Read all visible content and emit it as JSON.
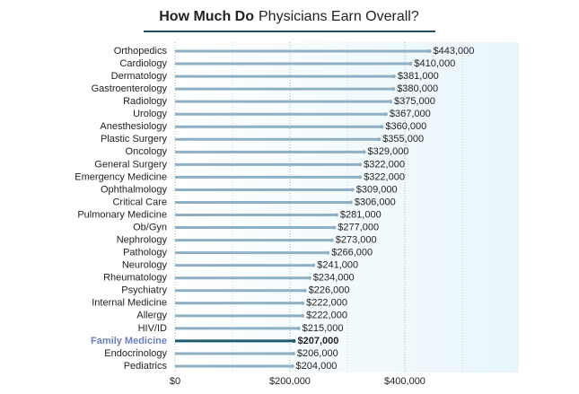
{
  "chart_data": {
    "type": "bar",
    "orientation": "horizontal",
    "title": {
      "bold": "How Much Do",
      "regular": "Physicians Earn Overall?"
    },
    "categories": [
      "Orthopedics",
      "Cardiology",
      "Dermatology",
      "Gastroenterology",
      "Radiology",
      "Urology",
      "Anesthesiology",
      "Plastic Surgery",
      "Oncology",
      "General Surgery",
      "Emergency Medicine",
      "Ophthalmology",
      "Critical Care",
      "Pulmonary Medicine",
      "Ob/Gyn",
      "Nephrology",
      "Pathology",
      "Neurology",
      "Rheumatology",
      "Psychiatry",
      "Internal Medicine",
      "Allergy",
      "HIV/ID",
      "Family Medicine",
      "Endocrinology",
      "Pediatrics"
    ],
    "values": [
      443000,
      410000,
      381000,
      380000,
      375000,
      367000,
      360000,
      355000,
      329000,
      322000,
      322000,
      309000,
      306000,
      281000,
      277000,
      273000,
      266000,
      241000,
      234000,
      226000,
      222000,
      222000,
      215000,
      207000,
      206000,
      204000
    ],
    "value_labels": [
      "$443,000",
      "$410,000",
      "$381,000",
      "$380,000",
      "$375,000",
      "$367,000",
      "$360,000",
      "$355,000",
      "$329,000",
      "$322,000",
      "$322,000",
      "$309,000",
      "$306,000",
      "$281,000",
      "$277,000",
      "$273,000",
      "$266,000",
      "$241,000",
      "$234,000",
      "$226,000",
      "$222,000",
      "$222,000",
      "$215,000",
      "$207,000",
      "$206,000",
      "$204,000"
    ],
    "color": "#8fb0c4",
    "highlight_index": 23,
    "highlight_color": "#1e5a6e",
    "highlight_label_color": "#6b7fc0",
    "xlim": [
      0,
      600000
    ],
    "xticks": [
      {
        "value": 0,
        "label": "$0"
      },
      {
        "value": 200000,
        "label": "$200,000"
      },
      {
        "value": 400000,
        "label": "$400,000"
      }
    ],
    "minor_xticks": [
      100000,
      300000,
      500000
    ],
    "grid": true
  }
}
